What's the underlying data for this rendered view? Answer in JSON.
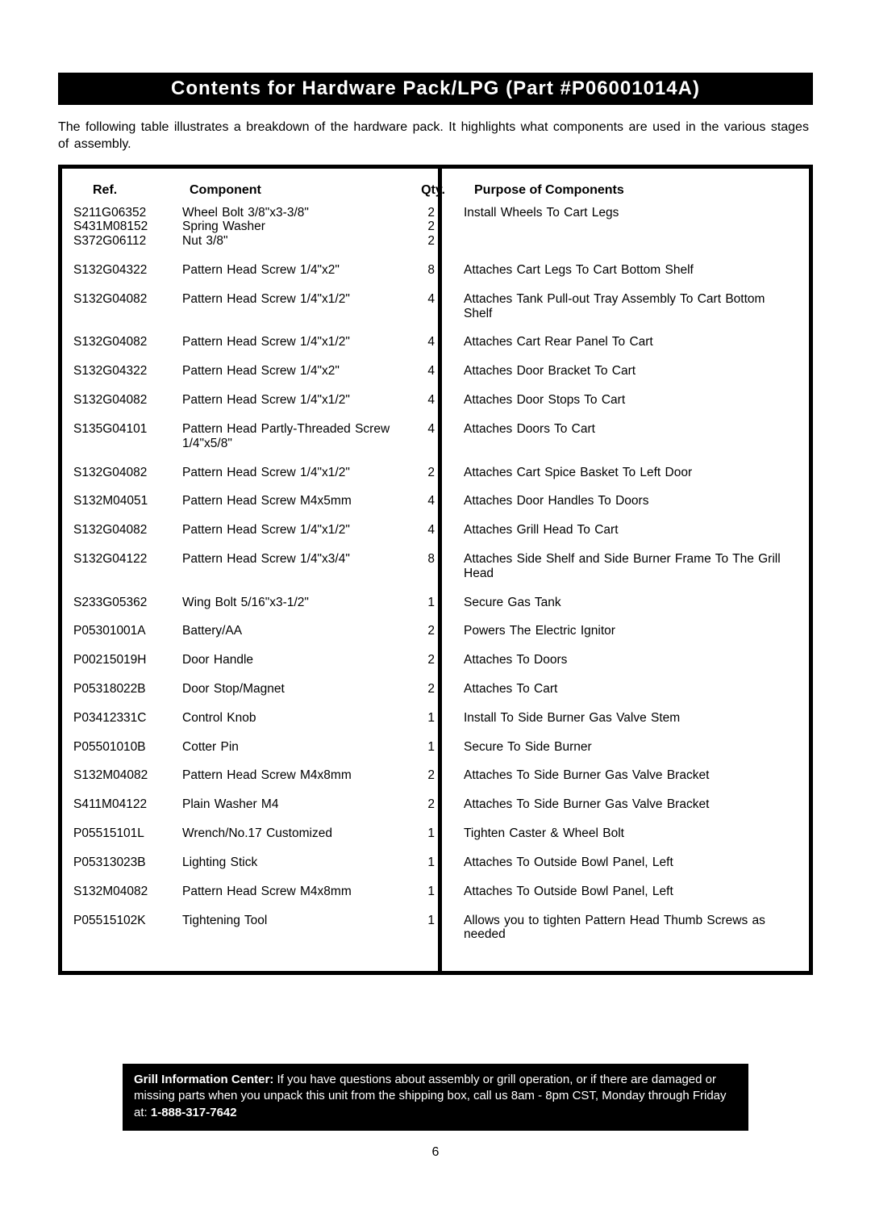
{
  "title": "Contents  for  Hardware  Pack/LPG  (Part  #P06001014A)",
  "intro": "The following table illustrates a breakdown of the hardware pack. It highlights what components are used in the various stages of assembly.",
  "headers": {
    "ref": "Ref.",
    "component": "Component",
    "qty": "Qty.",
    "purpose": "Purpose of Components"
  },
  "rows": [
    {
      "ref": [
        "S211G06352",
        "S431M08152",
        "S372G06112"
      ],
      "component": [
        "Wheel Bolt 3/8\"x3-3/8\"",
        "Spring Washer",
        "Nut 3/8\""
      ],
      "qty": [
        "2",
        "2",
        "2"
      ],
      "purpose": "Install Wheels To Cart Legs"
    },
    {
      "ref": [
        "S132G04322"
      ],
      "component": [
        "Pattern Head Screw 1/4\"x2\""
      ],
      "qty": [
        "8"
      ],
      "purpose": "Attaches Cart Legs To Cart Bottom Shelf"
    },
    {
      "ref": [
        "S132G04082"
      ],
      "component": [
        "Pattern Head Screw 1/4\"x1/2\""
      ],
      "qty": [
        "4"
      ],
      "purpose": "Attaches Tank Pull-out Tray Assembly To Cart Bottom Shelf"
    },
    {
      "ref": [
        "S132G04082"
      ],
      "component": [
        "Pattern Head Screw 1/4\"x1/2\""
      ],
      "qty": [
        "4"
      ],
      "purpose": "Attaches Cart Rear Panel To Cart"
    },
    {
      "ref": [
        "S132G04322"
      ],
      "component": [
        "Pattern Head Screw 1/4\"x2\""
      ],
      "qty": [
        "4"
      ],
      "purpose": "Attaches Door Bracket To Cart"
    },
    {
      "ref": [
        "S132G04082"
      ],
      "component": [
        "Pattern Head Screw 1/4\"x1/2\""
      ],
      "qty": [
        "4"
      ],
      "purpose": "Attaches Door Stops To Cart"
    },
    {
      "ref": [
        "S135G04101"
      ],
      "component": [
        "Pattern Head Partly-Threaded Screw 1/4\"x5/8\""
      ],
      "qty": [
        "4"
      ],
      "purpose": "Attaches Doors To Cart"
    },
    {
      "ref": [
        "S132G04082"
      ],
      "component": [
        "Pattern Head Screw 1/4\"x1/2\""
      ],
      "qty": [
        "2"
      ],
      "purpose": "Attaches Cart Spice Basket To Left Door"
    },
    {
      "ref": [
        "S132M04051"
      ],
      "component": [
        "Pattern Head Screw M4x5mm"
      ],
      "qty": [
        "4"
      ],
      "purpose": "Attaches Door Handles To Doors"
    },
    {
      "ref": [
        "S132G04082"
      ],
      "component": [
        "Pattern Head Screw 1/4\"x1/2\""
      ],
      "qty": [
        "4"
      ],
      "purpose": "Attaches Grill Head To Cart"
    },
    {
      "ref": [
        "S132G04122"
      ],
      "component": [
        "Pattern Head Screw 1/4\"x3/4\""
      ],
      "qty": [
        "8"
      ],
      "purpose": "Attaches Side Shelf and Side Burner Frame To The Grill Head"
    },
    {
      "ref": [
        "S233G05362"
      ],
      "component": [
        "Wing Bolt 5/16\"x3-1/2\""
      ],
      "qty": [
        "1"
      ],
      "purpose": "Secure Gas Tank"
    },
    {
      "ref": [
        "P05301001A"
      ],
      "component": [
        "Battery/AA"
      ],
      "qty": [
        "2"
      ],
      "purpose": "Powers The Electric Ignitor"
    },
    {
      "ref": [
        "P00215019H"
      ],
      "component": [
        "Door Handle"
      ],
      "qty": [
        "2"
      ],
      "purpose": "Attaches To Doors"
    },
    {
      "ref": [
        "P05318022B"
      ],
      "component": [
        "Door Stop/Magnet"
      ],
      "qty": [
        "2"
      ],
      "purpose": "Attaches To Cart"
    },
    {
      "ref": [
        "P03412331C"
      ],
      "component": [
        "Control Knob"
      ],
      "qty": [
        "1"
      ],
      "purpose": "Install To Side Burner Gas Valve Stem"
    },
    {
      "ref": [
        "P05501010B"
      ],
      "component": [
        "Cotter Pin"
      ],
      "qty": [
        "1"
      ],
      "purpose": "Secure To Side Burner"
    },
    {
      "ref": [
        "S132M04082"
      ],
      "component": [
        "Pattern Head Screw M4x8mm"
      ],
      "qty": [
        "2"
      ],
      "purpose": "Attaches To Side Burner Gas Valve Bracket"
    },
    {
      "ref": [
        "S411M04122"
      ],
      "component": [
        "Plain Washer M4"
      ],
      "qty": [
        "2"
      ],
      "purpose": "Attaches To Side Burner Gas Valve Bracket"
    },
    {
      "ref": [
        "P05515101L"
      ],
      "component": [
        "Wrench/No.17 Customized"
      ],
      "qty": [
        "1"
      ],
      "purpose": "Tighten Caster & Wheel Bolt"
    },
    {
      "ref": [
        "P05313023B"
      ],
      "component": [
        "Lighting Stick"
      ],
      "qty": [
        "1"
      ],
      "purpose": "Attaches To Outside Bowl Panel, Left"
    },
    {
      "ref": [
        "S132M04082"
      ],
      "component": [
        "Pattern Head Screw M4x8mm"
      ],
      "qty": [
        "1"
      ],
      "purpose": "Attaches To Outside Bowl Panel, Left"
    },
    {
      "ref": [
        "P05515102K"
      ],
      "component": [
        "Tightening Tool"
      ],
      "qty": [
        "1"
      ],
      "purpose": "Allows you to tighten Pattern Head Thumb Screws as needed"
    }
  ],
  "info_box": {
    "lead": "Grill Information Center:  ",
    "body": "If you have questions about assembly or grill operation, or if there are damaged or missing parts when you unpack this unit from the shipping box, call us  8am - 8pm CST, Monday through Friday at: ",
    "phone": "1-888-317-7642"
  },
  "page_number": "6"
}
